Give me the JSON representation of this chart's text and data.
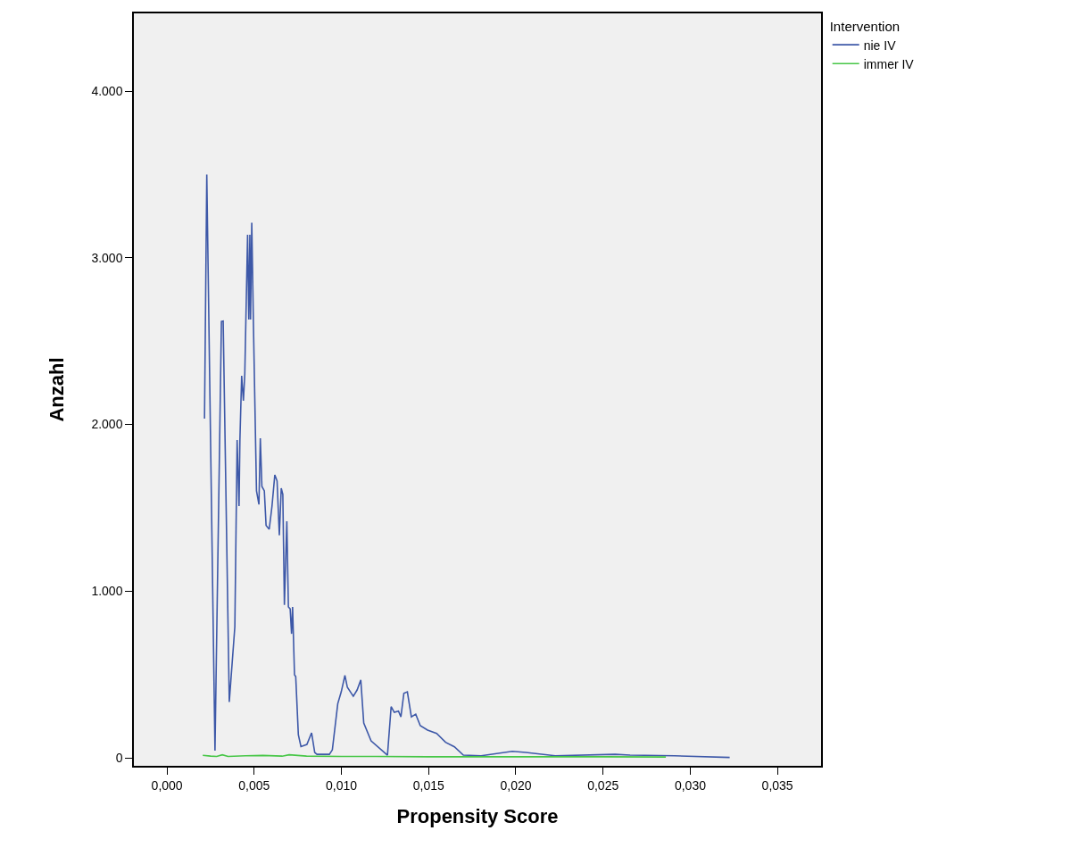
{
  "chart_data": {
    "type": "line",
    "xlabel": "Propensity Score",
    "ylabel": "Anzahl",
    "legend_title": "Intervention",
    "legend": "top right",
    "grid": false,
    "marker": "none",
    "line_style": "solid",
    "xlim": [
      -0.0019,
      0.0375
    ],
    "ylim": [
      -48,
      4466
    ],
    "xticks": [
      {
        "value": 0,
        "label": "0,000"
      },
      {
        "value": 0.005,
        "label": "0,005"
      },
      {
        "value": 0.01,
        "label": "0,010"
      },
      {
        "value": 0.015,
        "label": "0,015"
      },
      {
        "value": 0.02,
        "label": "0,020"
      },
      {
        "value": 0.025,
        "label": "0,025"
      },
      {
        "value": 0.03,
        "label": "0,030"
      },
      {
        "value": 0.035,
        "label": "0,035"
      }
    ],
    "yticks": [
      {
        "value": 0,
        "label": "0"
      },
      {
        "value": 1000,
        "label": "1.000"
      },
      {
        "value": 2000,
        "label": "2.000"
      },
      {
        "value": 3000,
        "label": "3.000"
      },
      {
        "value": 4000,
        "label": "4.000"
      }
    ],
    "series": [
      {
        "name": "nie IV",
        "color": "#3d58a8",
        "x": [
          0.00215,
          0.00228,
          0.00275,
          0.00312,
          0.00322,
          0.00357,
          0.00389,
          0.00402,
          0.00413,
          0.00418,
          0.00428,
          0.00438,
          0.00446,
          0.00462,
          0.00469,
          0.00475,
          0.00479,
          0.00486,
          0.00495,
          0.00513,
          0.00527,
          0.00535,
          0.00544,
          0.00558,
          0.00568,
          0.00586,
          0.00602,
          0.00618,
          0.00631,
          0.00644,
          0.00655,
          0.00664,
          0.00673,
          0.00687,
          0.00696,
          0.00706,
          0.00714,
          0.0072,
          0.00731,
          0.00738,
          0.00753,
          0.00768,
          0.00802,
          0.00829,
          0.00847,
          0.0086,
          0.00931,
          0.00948,
          0.00979,
          0.00999,
          0.0102,
          0.01034,
          0.01068,
          0.0109,
          0.01111,
          0.01128,
          0.0117,
          0.01264,
          0.01285,
          0.01303,
          0.01327,
          0.01341,
          0.01358,
          0.01378,
          0.01401,
          0.01426,
          0.01452,
          0.01494,
          0.01546,
          0.01597,
          0.01648,
          0.01699,
          0.01801,
          0.0198,
          0.02057,
          0.02226,
          0.02569,
          0.02655,
          0.0291,
          0.03226
        ],
        "values": [
          2035,
          3500,
          43,
          2618,
          2620,
          335,
          787,
          1906,
          1510,
          1906,
          2292,
          2142,
          2302,
          3138,
          2629,
          3138,
          2629,
          3210,
          2629,
          1602,
          1520,
          1917,
          1628,
          1602,
          1394,
          1371,
          1510,
          1697,
          1661,
          1335,
          1617,
          1580,
          917,
          1419,
          905,
          894,
          744,
          905,
          498,
          487,
          139,
          67,
          80,
          150,
          32,
          21,
          21,
          48,
          325,
          396,
          494,
          423,
          369,
          407,
          467,
          209,
          102,
          16,
          307,
          273,
          280,
          246,
          387,
          396,
          246,
          262,
          193,
          166,
          146,
          93,
          66,
          16,
          12,
          39,
          32,
          12,
          21,
          16,
          12,
          2
        ]
      },
      {
        "name": "immer IV",
        "color": "#46c646",
        "x": [
          0.00205,
          0.0025,
          0.00285,
          0.00317,
          0.0035,
          0.0045,
          0.0055,
          0.0066,
          0.007,
          0.008,
          0.01,
          0.012,
          0.015,
          0.02,
          0.025,
          0.0286
        ],
        "values": [
          15,
          10,
          8,
          18,
          8,
          12,
          14,
          10,
          18,
          10,
          8,
          8,
          6,
          6,
          6,
          5
        ]
      }
    ]
  }
}
